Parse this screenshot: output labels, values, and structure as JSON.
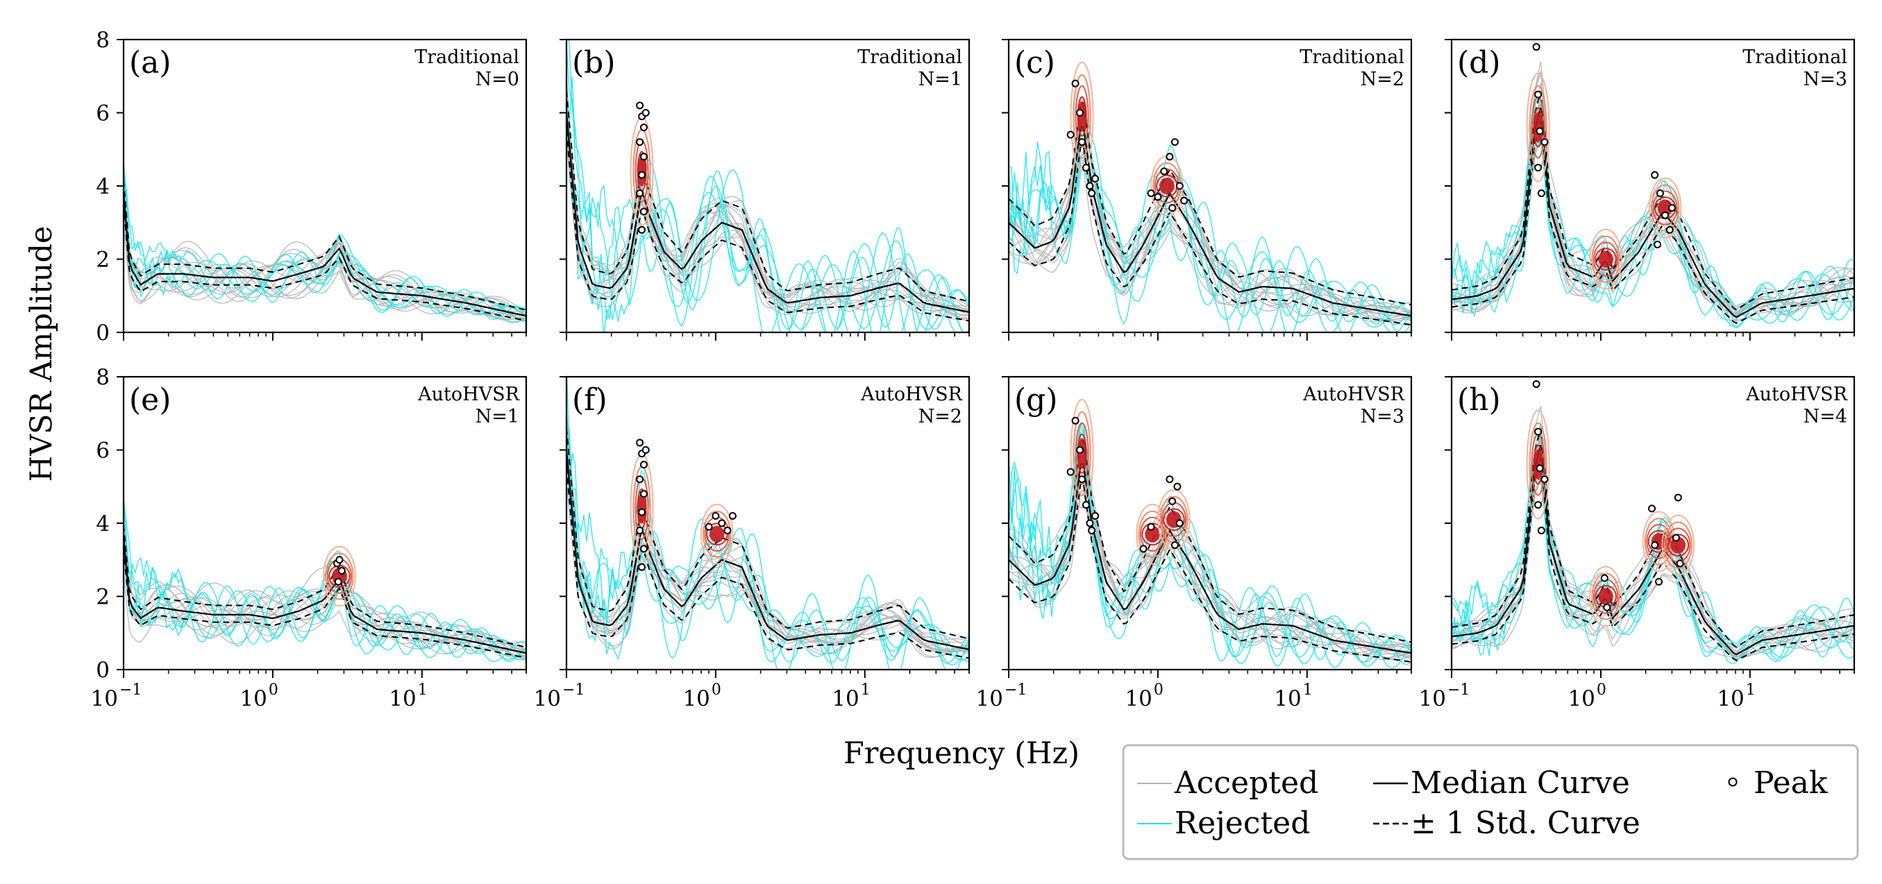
{
  "chart_data": {
    "type": "line",
    "figure": {
      "xlabel": "Frequency (Hz)",
      "ylabel": "HVSR Amplitude",
      "xscale": "log",
      "xlim": [
        0.1,
        50
      ],
      "ylim": [
        0,
        8
      ],
      "y_ticks": [
        "0",
        "2",
        "4",
        "6",
        "8"
      ],
      "x_ticks": [
        {
          "base": "10",
          "exp": "−1",
          "value": 0.1
        },
        {
          "base": "10",
          "exp": "0",
          "value": 1
        },
        {
          "base": "10",
          "exp": "1",
          "value": 10
        }
      ]
    },
    "legend": {
      "placement": "bottom-right",
      "items": [
        {
          "label": "Accepted",
          "style": "thin-line",
          "color": "#b4b4b4"
        },
        {
          "label": "Median Curve",
          "style": "solid-line",
          "color": "#000000"
        },
        {
          "label": "Peak",
          "style": "circle-marker",
          "color": "#000000"
        },
        {
          "label": "Rejected",
          "style": "thin-line",
          "color": "#1fe6ea"
        },
        {
          "label": "± 1 Std. Curve",
          "style": "dashed-line",
          "color": "#000000"
        }
      ]
    },
    "panels": [
      {
        "id": "a",
        "label": "(a)",
        "method": "Traditional",
        "n_label": "N=0",
        "n_clusters": 0,
        "median": [
          [
            0.1,
            3.8
          ],
          [
            0.11,
            1.8
          ],
          [
            0.13,
            1.3
          ],
          [
            0.17,
            1.6
          ],
          [
            0.25,
            1.6
          ],
          [
            0.4,
            1.5
          ],
          [
            0.7,
            1.5
          ],
          [
            1.0,
            1.4
          ],
          [
            1.5,
            1.6
          ],
          [
            2.2,
            1.8
          ],
          [
            2.8,
            2.3
          ],
          [
            3.4,
            1.5
          ],
          [
            5,
            1.1
          ],
          [
            10,
            1.0
          ],
          [
            20,
            0.8
          ],
          [
            50,
            0.45
          ]
        ],
        "std": 0.35,
        "peaks": [],
        "clusters": [],
        "rejected_amp": 0.35
      },
      {
        "id": "b",
        "label": "(b)",
        "method": "Traditional",
        "n_label": "N=1",
        "n_clusters": 1,
        "median": [
          [
            0.1,
            6.0
          ],
          [
            0.12,
            2.4
          ],
          [
            0.15,
            1.3
          ],
          [
            0.2,
            1.2
          ],
          [
            0.26,
            1.8
          ],
          [
            0.32,
            3.9
          ],
          [
            0.36,
            3.2
          ],
          [
            0.45,
            2.2
          ],
          [
            0.6,
            1.7
          ],
          [
            0.8,
            2.5
          ],
          [
            1.1,
            3.0
          ],
          [
            1.5,
            2.8
          ],
          [
            2.2,
            1.2
          ],
          [
            3,
            0.8
          ],
          [
            5,
            0.95
          ],
          [
            8,
            1.0
          ],
          [
            12,
            1.2
          ],
          [
            17,
            1.35
          ],
          [
            25,
            0.8
          ],
          [
            50,
            0.55
          ]
        ],
        "std": 0.6,
        "rejected_amp": 0.9,
        "peaks": [
          [
            0.31,
            6.2
          ],
          [
            0.32,
            5.9
          ],
          [
            0.33,
            5.6
          ],
          [
            0.31,
            5.2
          ],
          [
            0.33,
            4.8
          ],
          [
            0.32,
            4.3
          ],
          [
            0.31,
            3.8
          ],
          [
            0.33,
            3.3
          ],
          [
            0.32,
            2.8
          ],
          [
            0.34,
            6.0
          ]
        ],
        "clusters": [
          {
            "f": 0.32,
            "a": 4.4
          }
        ]
      },
      {
        "id": "c",
        "label": "(c)",
        "method": "Traditional",
        "n_label": "N=2",
        "n_clusters": 2,
        "median": [
          [
            0.1,
            3.0
          ],
          [
            0.15,
            2.3
          ],
          [
            0.2,
            2.5
          ],
          [
            0.26,
            3.5
          ],
          [
            0.31,
            5.9
          ],
          [
            0.36,
            4.0
          ],
          [
            0.45,
            2.4
          ],
          [
            0.6,
            1.6
          ],
          [
            0.8,
            2.4
          ],
          [
            1.2,
            3.8
          ],
          [
            1.6,
            3.0
          ],
          [
            2.5,
            1.5
          ],
          [
            3.5,
            1.1
          ],
          [
            5,
            1.25
          ],
          [
            8,
            1.2
          ],
          [
            15,
            0.8
          ],
          [
            50,
            0.45
          ]
        ],
        "std": 0.65,
        "rejected_amp": 0.9,
        "peaks": [
          [
            0.26,
            5.4
          ],
          [
            0.28,
            6.8
          ],
          [
            0.3,
            6.0
          ],
          [
            0.31,
            5.2
          ],
          [
            0.33,
            4.5
          ],
          [
            0.35,
            4.0
          ],
          [
            0.36,
            3.8
          ],
          [
            0.38,
            4.2
          ],
          [
            0.9,
            3.8
          ],
          [
            1.0,
            3.7
          ],
          [
            1.1,
            4.4
          ],
          [
            1.2,
            4.8
          ],
          [
            1.3,
            5.2
          ],
          [
            1.25,
            3.4
          ],
          [
            1.4,
            4.0
          ],
          [
            1.5,
            3.6
          ]
        ],
        "clusters": [
          {
            "f": 0.31,
            "a": 5.9
          },
          {
            "f": 1.15,
            "a": 4.0
          }
        ]
      },
      {
        "id": "d",
        "label": "(d)",
        "method": "Traditional",
        "n_label": "N=3",
        "n_clusters": 3,
        "median": [
          [
            0.1,
            0.9
          ],
          [
            0.15,
            1.0
          ],
          [
            0.2,
            1.2
          ],
          [
            0.3,
            2.3
          ],
          [
            0.36,
            5.5
          ],
          [
            0.4,
            6.2
          ],
          [
            0.45,
            3.5
          ],
          [
            0.6,
            1.8
          ],
          [
            0.9,
            1.5
          ],
          [
            1.08,
            2.0
          ],
          [
            1.2,
            1.4
          ],
          [
            1.8,
            2.2
          ],
          [
            2.6,
            3.3
          ],
          [
            3.3,
            2.8
          ],
          [
            5,
            1.3
          ],
          [
            8,
            0.4
          ],
          [
            12,
            0.8
          ],
          [
            25,
            1.0
          ],
          [
            50,
            1.2
          ]
        ],
        "std": 0.45,
        "rejected_amp": 0.5,
        "peaks": [
          [
            0.37,
            7.8
          ],
          [
            0.38,
            6.5
          ],
          [
            0.39,
            5.5
          ],
          [
            0.38,
            4.5
          ],
          [
            0.4,
            3.8
          ],
          [
            0.42,
            5.2
          ],
          [
            2.3,
            4.3
          ],
          [
            2.5,
            3.8
          ],
          [
            2.7,
            3.2
          ],
          [
            2.9,
            2.8
          ],
          [
            3.0,
            3.4
          ],
          [
            2.4,
            2.4
          ]
        ],
        "clusters": [
          {
            "f": 0.38,
            "a": 5.6
          },
          {
            "f": 1.08,
            "a": 2.0
          },
          {
            "f": 2.7,
            "a": 3.4
          }
        ]
      },
      {
        "id": "e",
        "label": "(e)",
        "method": "AutoHVSR",
        "n_label": "N=1",
        "n_clusters": 1,
        "median": [
          [
            0.1,
            3.6
          ],
          [
            0.11,
            1.8
          ],
          [
            0.13,
            1.4
          ],
          [
            0.17,
            1.7
          ],
          [
            0.25,
            1.6
          ],
          [
            0.4,
            1.5
          ],
          [
            0.7,
            1.5
          ],
          [
            1.0,
            1.4
          ],
          [
            1.5,
            1.6
          ],
          [
            2.2,
            1.9
          ],
          [
            2.8,
            2.5
          ],
          [
            3.4,
            1.5
          ],
          [
            5,
            1.1
          ],
          [
            10,
            1.0
          ],
          [
            20,
            0.8
          ],
          [
            50,
            0.45
          ]
        ],
        "std": 0.35,
        "rejected_amp": 0.45,
        "peaks": [
          [
            2.7,
            2.9
          ],
          [
            2.8,
            3.0
          ],
          [
            2.9,
            2.7
          ],
          [
            2.75,
            2.4
          ]
        ],
        "clusters": [
          {
            "f": 2.8,
            "a": 2.55
          }
        ]
      },
      {
        "id": "f",
        "label": "(f)",
        "method": "AutoHVSR",
        "n_label": "N=2",
        "n_clusters": 2,
        "median": [
          [
            0.1,
            6.0
          ],
          [
            0.12,
            2.4
          ],
          [
            0.15,
            1.3
          ],
          [
            0.2,
            1.2
          ],
          [
            0.26,
            1.8
          ],
          [
            0.32,
            3.9
          ],
          [
            0.36,
            3.2
          ],
          [
            0.45,
            2.2
          ],
          [
            0.6,
            1.7
          ],
          [
            0.8,
            2.5
          ],
          [
            1.1,
            3.0
          ],
          [
            1.5,
            2.8
          ],
          [
            2.2,
            1.2
          ],
          [
            3,
            0.8
          ],
          [
            5,
            0.95
          ],
          [
            8,
            1.0
          ],
          [
            12,
            1.2
          ],
          [
            17,
            1.35
          ],
          [
            25,
            0.8
          ],
          [
            50,
            0.55
          ]
        ],
        "std": 0.6,
        "rejected_amp": 0.9,
        "peaks": [
          [
            0.31,
            6.2
          ],
          [
            0.32,
            5.9
          ],
          [
            0.33,
            5.6
          ],
          [
            0.31,
            5.2
          ],
          [
            0.33,
            4.8
          ],
          [
            0.32,
            4.3
          ],
          [
            0.31,
            3.8
          ],
          [
            0.33,
            3.3
          ],
          [
            0.32,
            2.8
          ],
          [
            0.34,
            6.0
          ],
          [
            0.9,
            3.9
          ],
          [
            1.0,
            4.2
          ],
          [
            1.1,
            4.0
          ],
          [
            1.2,
            3.8
          ],
          [
            1.3,
            4.2
          ]
        ],
        "clusters": [
          {
            "f": 0.32,
            "a": 4.4
          },
          {
            "f": 1.02,
            "a": 3.7
          }
        ]
      },
      {
        "id": "g",
        "label": "(g)",
        "method": "AutoHVSR",
        "n_label": "N=3",
        "n_clusters": 3,
        "median": [
          [
            0.1,
            3.0
          ],
          [
            0.15,
            2.3
          ],
          [
            0.2,
            2.5
          ],
          [
            0.26,
            3.5
          ],
          [
            0.31,
            5.9
          ],
          [
            0.36,
            4.0
          ],
          [
            0.45,
            2.4
          ],
          [
            0.6,
            1.6
          ],
          [
            0.8,
            2.4
          ],
          [
            1.2,
            3.8
          ],
          [
            1.6,
            3.0
          ],
          [
            2.5,
            1.5
          ],
          [
            3.5,
            1.1
          ],
          [
            5,
            1.25
          ],
          [
            8,
            1.2
          ],
          [
            15,
            0.8
          ],
          [
            50,
            0.45
          ]
        ],
        "std": 0.65,
        "rejected_amp": 0.9,
        "peaks": [
          [
            0.26,
            5.4
          ],
          [
            0.28,
            6.8
          ],
          [
            0.3,
            6.0
          ],
          [
            0.31,
            5.2
          ],
          [
            0.33,
            4.5
          ],
          [
            0.35,
            4.0
          ],
          [
            0.36,
            3.8
          ],
          [
            0.38,
            4.2
          ],
          [
            0.8,
            3.3
          ],
          [
            0.9,
            3.9
          ],
          [
            1.2,
            5.2
          ],
          [
            1.25,
            4.6
          ],
          [
            1.3,
            3.4
          ],
          [
            1.4,
            4.0
          ],
          [
            1.35,
            5.0
          ]
        ],
        "clusters": [
          {
            "f": 0.31,
            "a": 5.9
          },
          {
            "f": 0.92,
            "a": 3.7
          },
          {
            "f": 1.28,
            "a": 4.1
          }
        ]
      },
      {
        "id": "h",
        "label": "(h)",
        "method": "AutoHVSR",
        "n_label": "N=4",
        "n_clusters": 4,
        "median": [
          [
            0.1,
            0.9
          ],
          [
            0.15,
            1.0
          ],
          [
            0.2,
            1.2
          ],
          [
            0.3,
            2.3
          ],
          [
            0.36,
            5.5
          ],
          [
            0.4,
            6.2
          ],
          [
            0.45,
            3.5
          ],
          [
            0.6,
            1.8
          ],
          [
            0.9,
            1.5
          ],
          [
            1.08,
            2.0
          ],
          [
            1.2,
            1.4
          ],
          [
            1.8,
            2.2
          ],
          [
            2.6,
            3.3
          ],
          [
            3.3,
            2.8
          ],
          [
            5,
            1.3
          ],
          [
            8,
            0.4
          ],
          [
            12,
            0.8
          ],
          [
            25,
            1.0
          ],
          [
            50,
            1.2
          ]
        ],
        "std": 0.45,
        "rejected_amp": 0.5,
        "peaks": [
          [
            0.37,
            7.8
          ],
          [
            0.38,
            6.5
          ],
          [
            0.39,
            5.5
          ],
          [
            0.38,
            4.5
          ],
          [
            0.4,
            3.8
          ],
          [
            0.42,
            5.2
          ],
          [
            1.06,
            2.5
          ],
          [
            1.1,
            1.7
          ],
          [
            2.2,
            4.4
          ],
          [
            2.3,
            3.4
          ],
          [
            2.45,
            2.4
          ],
          [
            3.3,
            4.7
          ],
          [
            3.2,
            3.6
          ],
          [
            3.4,
            2.9
          ]
        ],
        "clusters": [
          {
            "f": 0.38,
            "a": 5.6
          },
          {
            "f": 1.08,
            "a": 2.0
          },
          {
            "f": 2.45,
            "a": 3.5
          },
          {
            "f": 3.3,
            "a": 3.4
          }
        ]
      }
    ]
  }
}
